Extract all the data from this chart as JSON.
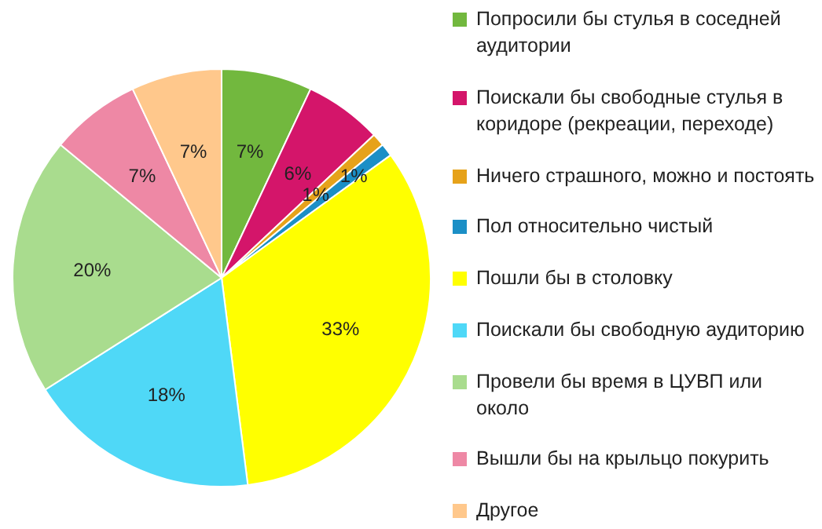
{
  "chart_data": {
    "type": "pie",
    "categories": [
      "Попросили бы стулья в соседней аудитории",
      "Поискали бы свободные стулья в коридоре (рекреации, переходе)",
      "Ничего страшного, можно и постоять",
      "Пол относительно чистый",
      "Пошли бы в столовку",
      "Поискали бы свободную аудиторию",
      "Провели бы время в ЦУВП или около",
      "Вышли бы на крыльцо покурить",
      "Другое"
    ],
    "values": [
      7,
      6,
      1,
      1,
      33,
      18,
      20,
      7,
      7
    ],
    "value_labels": [
      "7%",
      "6%",
      "1%",
      "1%",
      "33%",
      "18%",
      "20%",
      "7%",
      "7%"
    ],
    "colors": [
      "#72b83e",
      "#d4156a",
      "#e6a21a",
      "#1b8fc6",
      "#ffff00",
      "#4fd8f7",
      "#a9dc8e",
      "#ee88a5",
      "#ffc88c"
    ],
    "legend": "right"
  }
}
